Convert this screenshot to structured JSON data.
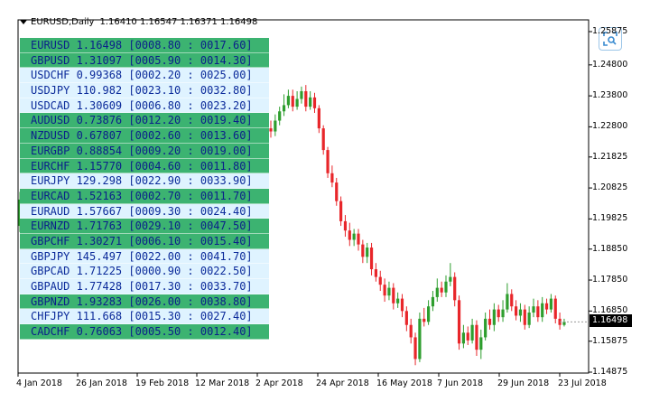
{
  "header": {
    "symbol": "EURUSD,Daily",
    "ohlc": "1.16410 1.16547 1.16371 1.16498"
  },
  "panel": {
    "rows": [
      {
        "text": "EURUSD 1.16498 [0008.80 : 0017.60]",
        "style": "green"
      },
      {
        "text": "GBPUSD 1.31097 [0005.90 : 0014.30]",
        "style": "green"
      },
      {
        "text": "USDCHF 0.99368 [0002.20 : 0025.00]",
        "style": "light"
      },
      {
        "text": "USDJPY 110.982 [0023.10 : 0032.80]",
        "style": "light"
      },
      {
        "text": "USDCAD 1.30609 [0006.80 : 0023.20]",
        "style": "light"
      },
      {
        "text": "AUDUSD 0.73876 [0012.20 : 0019.40]",
        "style": "green"
      },
      {
        "text": "NZDUSD 0.67807 [0002.60 : 0013.60]",
        "style": "green"
      },
      {
        "text": "EURGBP 0.88854 [0009.20 : 0019.00]",
        "style": "green"
      },
      {
        "text": "EURCHF 1.15770 [0004.60 : 0011.80]",
        "style": "green"
      },
      {
        "text": "EURJPY 129.298 [0022.90 : 0033.90]",
        "style": "light"
      },
      {
        "text": "EURCAD 1.52163 [0002.70 : 0011.70]",
        "style": "green"
      },
      {
        "text": "EURAUD 1.57667 [0009.30 : 0024.40]",
        "style": "light"
      },
      {
        "text": "EURNZD 1.71763 [0029.10 : 0047.50]",
        "style": "green"
      },
      {
        "text": "GBPCHF 1.30271 [0006.10 : 0015.40]",
        "style": "green"
      },
      {
        "text": "GBPJPY 145.497 [0022.00 : 0041.70]",
        "style": "light"
      },
      {
        "text": "GBPCAD 1.71225 [0000.90 : 0022.50]",
        "style": "light"
      },
      {
        "text": "GBPAUD 1.77428 [0017.30 : 0033.70]",
        "style": "light"
      },
      {
        "text": "GBPNZD 1.93283 [0026.00 : 0038.80]",
        "style": "green"
      },
      {
        "text": "CHFJPY 111.668 [0015.30 : 0027.40]",
        "style": "light"
      },
      {
        "text": "CADCHF 0.76063 [0005.50 : 0012.40]",
        "style": "green"
      }
    ]
  },
  "yaxis": {
    "labels": [
      "1.25875",
      "1.24800",
      "1.23800",
      "1.22800",
      "1.21825",
      "1.20825",
      "1.19825",
      "1.18850",
      "1.17850",
      "1.16850",
      "1.15875",
      "1.14875"
    ],
    "current_price": "1.16498"
  },
  "xaxis": {
    "labels": [
      "4 Jan 2018",
      "26 Jan 2018",
      "19 Feb 2018",
      "12 Mar 2018",
      "2 Apr 2018",
      "24 Apr 2018",
      "16 May 2018",
      "7 Jun 2018",
      "29 Jun 2018",
      "23 Jul 2018"
    ]
  },
  "chart_data": {
    "type": "candlestick",
    "ylim": [
      1.14875,
      1.25875
    ],
    "up_color": "#2e9e2e",
    "down_color": "#e8262a",
    "series": [
      {
        "o": 1.196,
        "c": 1.2045,
        "h": 1.207,
        "l": 1.194
      },
      {
        "o": 1.2045,
        "c": 1.2005,
        "h": 1.206,
        "l": 1.1985
      },
      {
        "o": 1.2275,
        "c": 1.2265,
        "h": 1.23,
        "l": 1.2245
      },
      {
        "o": 1.2265,
        "c": 1.23,
        "h": 1.232,
        "l": 1.225
      },
      {
        "o": 1.23,
        "c": 1.233,
        "h": 1.2345,
        "l": 1.2285
      },
      {
        "o": 1.233,
        "c": 1.235,
        "h": 1.2385,
        "l": 1.2315
      },
      {
        "o": 1.235,
        "c": 1.238,
        "h": 1.24,
        "l": 1.234
      },
      {
        "o": 1.238,
        "c": 1.2345,
        "h": 1.24,
        "l": 1.233
      },
      {
        "o": 1.2345,
        "c": 1.237,
        "h": 1.2395,
        "l": 1.2335
      },
      {
        "o": 1.237,
        "c": 1.2395,
        "h": 1.241,
        "l": 1.2355
      },
      {
        "o": 1.2395,
        "c": 1.2345,
        "h": 1.2415,
        "l": 1.233
      },
      {
        "o": 1.2345,
        "c": 1.2375,
        "h": 1.2395,
        "l": 1.2335
      },
      {
        "o": 1.2375,
        "c": 1.234,
        "h": 1.239,
        "l": 1.2325
      },
      {
        "o": 1.234,
        "c": 1.2275,
        "h": 1.235,
        "l": 1.226
      },
      {
        "o": 1.2275,
        "c": 1.2205,
        "h": 1.2285,
        "l": 1.219
      },
      {
        "o": 1.2205,
        "c": 1.213,
        "h": 1.2215,
        "l": 1.2115
      },
      {
        "o": 1.213,
        "c": 1.21,
        "h": 1.2155,
        "l": 1.2085
      },
      {
        "o": 1.21,
        "c": 1.204,
        "h": 1.2115,
        "l": 1.2025
      },
      {
        "o": 1.204,
        "c": 1.1975,
        "h": 1.2055,
        "l": 1.196
      },
      {
        "o": 1.1975,
        "c": 1.1945,
        "h": 1.1995,
        "l": 1.1925
      },
      {
        "o": 1.1945,
        "c": 1.1915,
        "h": 1.197,
        "l": 1.1895
      },
      {
        "o": 1.1915,
        "c": 1.1935,
        "h": 1.195,
        "l": 1.1895
      },
      {
        "o": 1.1935,
        "c": 1.19,
        "h": 1.195,
        "l": 1.188
      },
      {
        "o": 1.19,
        "c": 1.186,
        "h": 1.1915,
        "l": 1.184
      },
      {
        "o": 1.186,
        "c": 1.189,
        "h": 1.1905,
        "l": 1.184
      },
      {
        "o": 1.189,
        "c": 1.182,
        "h": 1.1905,
        "l": 1.18
      },
      {
        "o": 1.182,
        "c": 1.1795,
        "h": 1.184,
        "l": 1.178
      },
      {
        "o": 1.1795,
        "c": 1.177,
        "h": 1.1815,
        "l": 1.175
      },
      {
        "o": 1.177,
        "c": 1.1735,
        "h": 1.179,
        "l": 1.1715
      },
      {
        "o": 1.1735,
        "c": 1.176,
        "h": 1.178,
        "l": 1.172
      },
      {
        "o": 1.176,
        "c": 1.171,
        "h": 1.1775,
        "l": 1.169
      },
      {
        "o": 1.171,
        "c": 1.1725,
        "h": 1.1745,
        "l": 1.1695
      },
      {
        "o": 1.1725,
        "c": 1.1685,
        "h": 1.174,
        "l": 1.1665
      },
      {
        "o": 1.1685,
        "c": 1.164,
        "h": 1.17,
        "l": 1.162
      },
      {
        "o": 1.164,
        "c": 1.16,
        "h": 1.166,
        "l": 1.158
      },
      {
        "o": 1.16,
        "c": 1.153,
        "h": 1.1615,
        "l": 1.151
      },
      {
        "o": 1.153,
        "c": 1.166,
        "h": 1.168,
        "l": 1.152
      },
      {
        "o": 1.166,
        "c": 1.165,
        "h": 1.1695,
        "l": 1.1635
      },
      {
        "o": 1.165,
        "c": 1.17,
        "h": 1.172,
        "l": 1.164
      },
      {
        "o": 1.17,
        "c": 1.173,
        "h": 1.175,
        "l": 1.1685
      },
      {
        "o": 1.173,
        "c": 1.176,
        "h": 1.179,
        "l": 1.1715
      },
      {
        "o": 1.176,
        "c": 1.1745,
        "h": 1.178,
        "l": 1.173
      },
      {
        "o": 1.1745,
        "c": 1.178,
        "h": 1.18,
        "l": 1.173
      },
      {
        "o": 1.178,
        "c": 1.1795,
        "h": 1.184,
        "l": 1.1765
      },
      {
        "o": 1.1795,
        "c": 1.172,
        "h": 1.181,
        "l": 1.17
      },
      {
        "o": 1.172,
        "c": 1.158,
        "h": 1.1735,
        "l": 1.156
      },
      {
        "o": 1.158,
        "c": 1.1615,
        "h": 1.164,
        "l": 1.1565
      },
      {
        "o": 1.1615,
        "c": 1.159,
        "h": 1.1635,
        "l": 1.1575
      },
      {
        "o": 1.159,
        "c": 1.164,
        "h": 1.166,
        "l": 1.158
      },
      {
        "o": 1.164,
        "c": 1.156,
        "h": 1.1655,
        "l": 1.154
      },
      {
        "o": 1.156,
        "c": 1.16,
        "h": 1.1625,
        "l": 1.153
      },
      {
        "o": 1.16,
        "c": 1.166,
        "h": 1.168,
        "l": 1.159
      },
      {
        "o": 1.166,
        "c": 1.164,
        "h": 1.169,
        "l": 1.1625
      },
      {
        "o": 1.164,
        "c": 1.169,
        "h": 1.171,
        "l": 1.162
      },
      {
        "o": 1.169,
        "c": 1.1665,
        "h": 1.1705,
        "l": 1.165
      },
      {
        "o": 1.1665,
        "c": 1.169,
        "h": 1.172,
        "l": 1.165
      },
      {
        "o": 1.169,
        "c": 1.174,
        "h": 1.1775,
        "l": 1.168
      },
      {
        "o": 1.174,
        "c": 1.17,
        "h": 1.1755,
        "l": 1.1685
      },
      {
        "o": 1.17,
        "c": 1.167,
        "h": 1.172,
        "l": 1.1655
      },
      {
        "o": 1.167,
        "c": 1.169,
        "h": 1.171,
        "l": 1.165
      },
      {
        "o": 1.169,
        "c": 1.164,
        "h": 1.1705,
        "l": 1.1625
      },
      {
        "o": 1.164,
        "c": 1.168,
        "h": 1.17,
        "l": 1.163
      },
      {
        "o": 1.168,
        "c": 1.17,
        "h": 1.1725,
        "l": 1.1665
      },
      {
        "o": 1.17,
        "c": 1.1665,
        "h": 1.172,
        "l": 1.165
      },
      {
        "o": 1.1665,
        "c": 1.171,
        "h": 1.173,
        "l": 1.165
      },
      {
        "o": 1.171,
        "c": 1.169,
        "h": 1.1725,
        "l": 1.1675
      },
      {
        "o": 1.169,
        "c": 1.1725,
        "h": 1.174,
        "l": 1.168
      },
      {
        "o": 1.1725,
        "c": 1.166,
        "h": 1.1735,
        "l": 1.1645
      },
      {
        "o": 1.166,
        "c": 1.164,
        "h": 1.168,
        "l": 1.1625
      },
      {
        "o": 1.164,
        "c": 1.165,
        "h": 1.166,
        "l": 1.1635
      }
    ]
  }
}
